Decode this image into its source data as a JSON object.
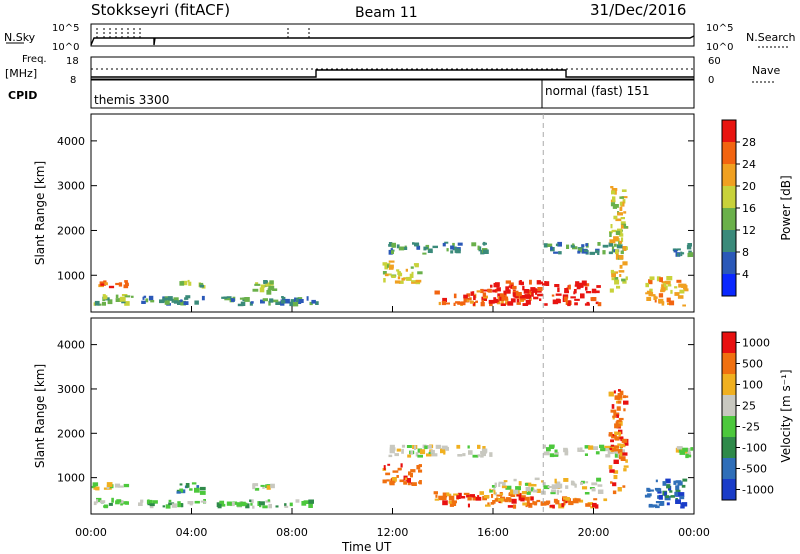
{
  "header": {
    "station": "Stokkseyri (fitACF)",
    "beam": "Beam 11",
    "date": "31/Dec/2016"
  },
  "top_panels": {
    "nsky_label": "N.Sky",
    "nsky_ticks": [
      "10^5",
      "10^0"
    ],
    "nsearch_label": "N.Search",
    "nsearch_ticks": [
      "10^5",
      "10^0"
    ],
    "freq_label": "Freq.",
    "freq_unit": "[MHz]",
    "freq_ticks": [
      "18",
      "8"
    ],
    "nave_label": "Nave",
    "nave_ticks": [
      "60",
      "0"
    ],
    "cpid_label": "CPID",
    "cpid_modes": [
      {
        "label": "themis 3300",
        "start_hour": 0
      },
      {
        "label": "normal (fast) 151",
        "start_hour": 18
      }
    ]
  },
  "chart_data": [
    {
      "type": "heatmap",
      "name": "power",
      "ylabel": "Slant Range [km]",
      "xlabel": "",
      "x_range_hours": [
        0,
        24
      ],
      "ylim": [
        180,
        4600
      ],
      "y_ticks": [
        "1000",
        "2000",
        "3000",
        "4000"
      ],
      "colorbar_label": "Power [dB]",
      "colorbar_ticks": [
        "4",
        "8",
        "12",
        "16",
        "20",
        "24",
        "28"
      ],
      "colorbar_colors": [
        "#0a28ff",
        "#2a58b8",
        "#3a8a7a",
        "#6ab04a",
        "#c8d23a",
        "#f0a020",
        "#f26410",
        "#e81410"
      ],
      "patches": [
        {
          "t": [
            0.0,
            1.6
          ],
          "r": [
            700,
            900
          ],
          "level": 6
        },
        {
          "t": [
            0.1,
            1.7
          ],
          "r": [
            300,
            600
          ],
          "level": 3
        },
        {
          "t": [
            1.8,
            4.6
          ],
          "r": [
            320,
            560
          ],
          "level": 2
        },
        {
          "t": [
            3.4,
            4.6
          ],
          "r": [
            700,
            900
          ],
          "level": 3
        },
        {
          "t": [
            5.0,
            9.2
          ],
          "r": [
            300,
            540
          ],
          "level": 2
        },
        {
          "t": [
            6.4,
            7.6
          ],
          "r": [
            560,
            900
          ],
          "level": 3
        },
        {
          "t": [
            11.6,
            13.2
          ],
          "r": [
            800,
            1350
          ],
          "level": 4
        },
        {
          "t": [
            11.8,
            16.0
          ],
          "r": [
            1450,
            1750
          ],
          "level": 2
        },
        {
          "t": [
            13.6,
            17.6
          ],
          "r": [
            300,
            700
          ],
          "level": 6
        },
        {
          "t": [
            15.8,
            20.4
          ],
          "r": [
            300,
            900
          ],
          "level": 7
        },
        {
          "t": [
            18.0,
            21.4
          ],
          "r": [
            1450,
            1750
          ],
          "level": 2
        },
        {
          "t": [
            20.6,
            21.4
          ],
          "r": [
            600,
            3000
          ],
          "level": 4
        },
        {
          "t": [
            22.0,
            23.8
          ],
          "r": [
            300,
            1000
          ],
          "level": 5
        },
        {
          "t": [
            23.0,
            24.0
          ],
          "r": [
            1400,
            1750
          ],
          "level": 2
        }
      ]
    },
    {
      "type": "heatmap",
      "name": "velocity",
      "ylabel": "Slant Range [km]",
      "xlabel": "Time UT",
      "x_range_hours": [
        0,
        24
      ],
      "x_ticks": [
        "00:00",
        "04:00",
        "08:00",
        "12:00",
        "16:00",
        "20:00",
        "00:00"
      ],
      "ylim": [
        180,
        4600
      ],
      "y_ticks": [
        "1000",
        "2000",
        "3000",
        "4000"
      ],
      "colorbar_label": "Velocity [m s⁻¹]",
      "colorbar_ticks": [
        "1000",
        "500",
        "100",
        "25",
        "-25",
        "-100",
        "-500",
        "-1000"
      ],
      "colorbar_colors": [
        "#1a3cc8",
        "#2f6eb8",
        "#2f8a4a",
        "#4cc83c",
        "#c8c8c0",
        "#f0b020",
        "#f07010",
        "#e81010"
      ],
      "patches": [
        {
          "t": [
            0.0,
            1.6
          ],
          "r": [
            700,
            900
          ],
          "level": 4
        },
        {
          "t": [
            0.1,
            1.7
          ],
          "r": [
            300,
            560
          ],
          "level": 3
        },
        {
          "t": [
            1.8,
            4.6
          ],
          "r": [
            300,
            520
          ],
          "level": 3
        },
        {
          "t": [
            3.4,
            4.6
          ],
          "r": [
            600,
            900
          ],
          "level": 2
        },
        {
          "t": [
            5.0,
            9.2
          ],
          "r": [
            300,
            520
          ],
          "level": 3
        },
        {
          "t": [
            6.4,
            7.6
          ],
          "r": [
            700,
            900
          ],
          "level": 4
        },
        {
          "t": [
            11.6,
            13.2
          ],
          "r": [
            800,
            1350
          ],
          "level": 6
        },
        {
          "t": [
            11.8,
            16.0
          ],
          "r": [
            1450,
            1750
          ],
          "level": 4
        },
        {
          "t": [
            13.6,
            17.6
          ],
          "r": [
            300,
            700
          ],
          "level": 6
        },
        {
          "t": [
            15.8,
            20.4
          ],
          "r": [
            600,
            1000
          ],
          "level": 4
        },
        {
          "t": [
            16.0,
            20.6
          ],
          "r": [
            300,
            580
          ],
          "level": 6
        },
        {
          "t": [
            18.0,
            21.4
          ],
          "r": [
            1450,
            1750
          ],
          "level": 4
        },
        {
          "t": [
            20.6,
            21.4
          ],
          "r": [
            600,
            3000
          ],
          "level": 6
        },
        {
          "t": [
            22.0,
            23.8
          ],
          "r": [
            300,
            1000
          ],
          "level": 1
        },
        {
          "t": [
            23.0,
            24.0
          ],
          "r": [
            1400,
            1750
          ],
          "level": 4
        }
      ]
    }
  ]
}
